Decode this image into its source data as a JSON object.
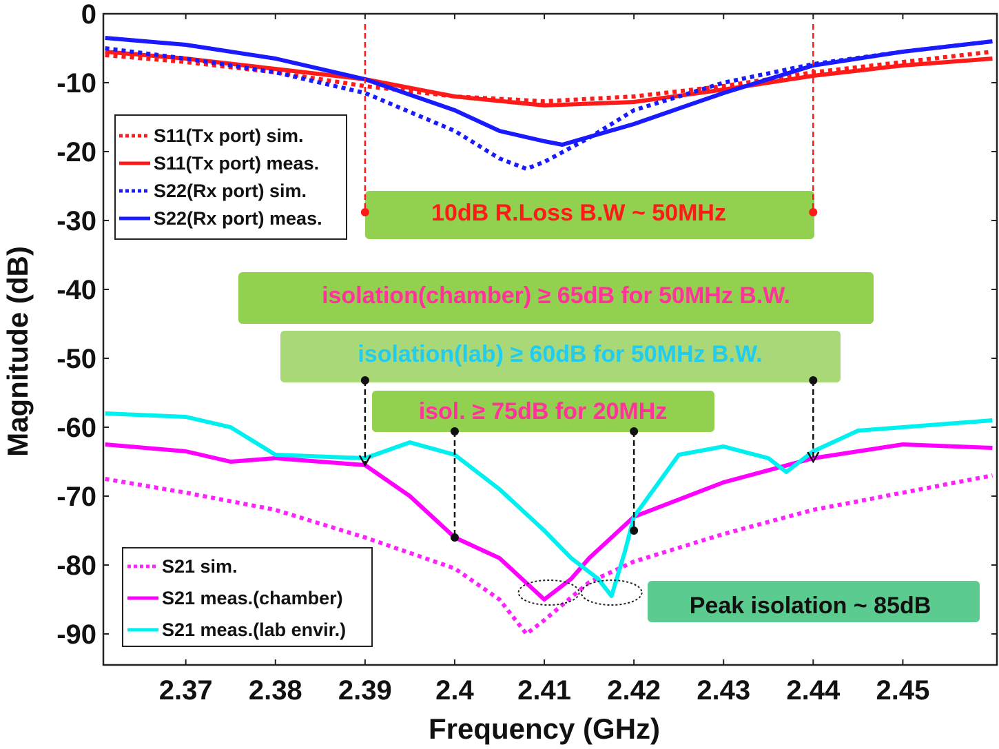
{
  "chart_data": {
    "type": "line",
    "xlabel": "Frequency (GHz)",
    "ylabel": "Magnitude (dB)",
    "xlim": [
      2.3608,
      2.4605
    ],
    "ylim": [
      -94.5,
      0
    ],
    "xticks": [
      "2.37",
      "2.38",
      "2.39",
      "2.4",
      "2.41",
      "2.42",
      "2.43",
      "2.44",
      "2.45"
    ],
    "yticks": [
      "0",
      "-10",
      "-20",
      "-30",
      "-40",
      "-50",
      "-60",
      "-70",
      "-80",
      "-90"
    ],
    "grid": false,
    "series": [
      {
        "name": "S11(Tx port) sim.",
        "color": "#ff1a1a",
        "style": "dotted",
        "legend": "top-left",
        "x": [
          2.361,
          2.37,
          2.38,
          2.39,
          2.4,
          2.41,
          2.42,
          2.43,
          2.44,
          2.45,
          2.46
        ],
        "y": [
          -6,
          -7,
          -8.5,
          -10.5,
          -12,
          -12.7,
          -12,
          -10.5,
          -8.5,
          -7,
          -5.5
        ]
      },
      {
        "name": "S11(Tx port) meas.",
        "color": "#ff1a1a",
        "style": "solid",
        "legend": "top-left",
        "x": [
          2.361,
          2.37,
          2.38,
          2.39,
          2.4,
          2.41,
          2.42,
          2.43,
          2.44,
          2.45,
          2.46
        ],
        "y": [
          -5.5,
          -6.5,
          -8,
          -9.5,
          -12,
          -13.3,
          -12.8,
          -11,
          -9,
          -7.5,
          -6.5
        ]
      },
      {
        "name": "S22(Rx port) sim.",
        "color": "#1a1aff",
        "style": "dotted",
        "legend": "top-left",
        "x": [
          2.361,
          2.37,
          2.38,
          2.39,
          2.4,
          2.405,
          2.408,
          2.41,
          2.415,
          2.42,
          2.43,
          2.44,
          2.45,
          2.46
        ],
        "y": [
          -5,
          -6.5,
          -8.5,
          -11.5,
          -17,
          -21,
          -22.5,
          -21.5,
          -18,
          -14,
          -10,
          -7.3,
          -5.5,
          -4
        ]
      },
      {
        "name": "S22(Rx port) meas.",
        "color": "#1a1aff",
        "style": "solid",
        "legend": "top-left",
        "x": [
          2.361,
          2.37,
          2.38,
          2.39,
          2.4,
          2.405,
          2.41,
          2.412,
          2.42,
          2.43,
          2.44,
          2.45,
          2.46
        ],
        "y": [
          -3.5,
          -4.5,
          -6.5,
          -9.5,
          -14,
          -17,
          -18.5,
          -19,
          -16,
          -11.5,
          -7.5,
          -5.5,
          -4
        ]
      },
      {
        "name": "S21 sim.",
        "color": "#ff22ff",
        "style": "dotted",
        "legend": "bottom-left",
        "x": [
          2.361,
          2.37,
          2.38,
          2.39,
          2.4,
          2.405,
          2.408,
          2.41,
          2.415,
          2.42,
          2.43,
          2.44,
          2.45,
          2.46
        ],
        "y": [
          -67.5,
          -69.5,
          -72,
          -76,
          -80.5,
          -85,
          -90,
          -88,
          -82.5,
          -79.5,
          -75.5,
          -72,
          -69.5,
          -67
        ]
      },
      {
        "name": "S21 meas.(chamber)",
        "color": "#ff00ff",
        "style": "solid",
        "legend": "bottom-left",
        "x": [
          2.361,
          2.37,
          2.375,
          2.38,
          2.39,
          2.395,
          2.4,
          2.405,
          2.41,
          2.413,
          2.415,
          2.42,
          2.43,
          2.44,
          2.45,
          2.46
        ],
        "y": [
          -62.5,
          -63.5,
          -65,
          -64.5,
          -65.5,
          -70,
          -76,
          -79,
          -85,
          -82,
          -79,
          -73,
          -68,
          -64.5,
          -62.5,
          -63
        ]
      },
      {
        "name": "S21 meas.(lab envir.)",
        "color": "#00f0f0",
        "style": "solid",
        "legend": "bottom-left",
        "x": [
          2.361,
          2.37,
          2.375,
          2.38,
          2.39,
          2.395,
          2.4,
          2.405,
          2.41,
          2.413,
          2.416,
          2.4175,
          2.419,
          2.42,
          2.425,
          2.43,
          2.435,
          2.437,
          2.44,
          2.445,
          2.45,
          2.46
        ],
        "y": [
          -58,
          -58.5,
          -60,
          -64,
          -64.5,
          -62.2,
          -64,
          -69,
          -75,
          -79,
          -82,
          -84.5,
          -78,
          -73,
          -64,
          -62.8,
          -64.5,
          -66.5,
          -63.5,
          -60.5,
          -60,
          -59
        ]
      }
    ],
    "annotations": [
      {
        "text": "10dB  R.Loss B.W ~ 50MHz",
        "color": "#ff1a1a",
        "box": "#92d050"
      },
      {
        "text": "isolation(chamber)  ≥  65dB for 50MHz B.W.",
        "color": "#ff3399",
        "box": "#92d050"
      },
      {
        "text": "isolation(lab)  ≥  60dB for 50MHz B.W.",
        "color": "#22ccee",
        "box": "#a9d878"
      },
      {
        "text": "isol.  ≥ 75dB for 20MHz",
        "color": "#ff3399",
        "box": "#92d050"
      },
      {
        "text": "Peak isolation ~ 85dB",
        "color": "#111111",
        "box": "#5ccb8f"
      }
    ],
    "markers": {
      "rloss_band": [
        2.39,
        2.44
      ],
      "lab_band": [
        2.39,
        2.44
      ],
      "chamber_20mhz_band": [
        2.4,
        2.42
      ]
    }
  }
}
